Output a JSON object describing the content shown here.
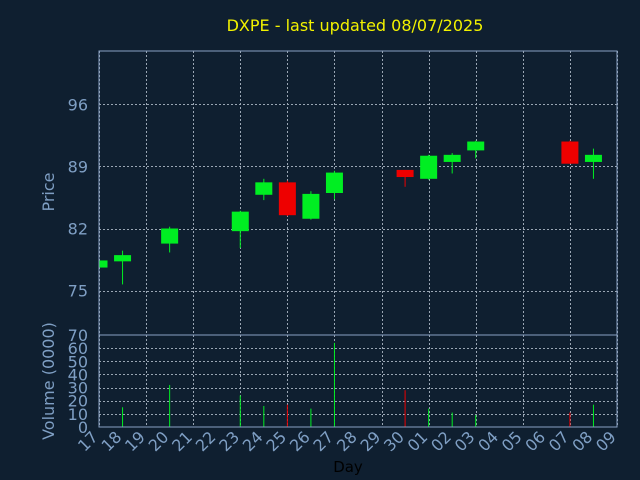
{
  "chart_data": {
    "type": "candlestick",
    "title": "DXPE - last updated 08/07/2025",
    "xlabel": "Day",
    "ylabel": "Price",
    "volume_label": "Volume (0000)",
    "price_ylim": [
      70,
      102
    ],
    "price_ticks": [
      75,
      82,
      89,
      96
    ],
    "volume_ylim": [
      0,
      70
    ],
    "volume_ticks": [
      0,
      10,
      20,
      30,
      40,
      50,
      60,
      70
    ],
    "grid": true,
    "categories": [
      "17",
      "18",
      "19",
      "20",
      "21",
      "22",
      "23",
      "24",
      "25",
      "26",
      "27",
      "28",
      "29",
      "30",
      "01",
      "02",
      "03",
      "04",
      "05",
      "06",
      "07",
      "08",
      "09"
    ],
    "candles": [
      {
        "x": "17",
        "open": 77.6,
        "high": 78.5,
        "low": 77.3,
        "close": 78.4,
        "volume": 7
      },
      {
        "x": "18",
        "open": 78.3,
        "high": 79.5,
        "low": 75.7,
        "close": 79.0,
        "volume": 15
      },
      {
        "x": "20",
        "open": 80.3,
        "high": 82.2,
        "low": 79.3,
        "close": 82.0,
        "volume": 32
      },
      {
        "x": "23",
        "open": 81.7,
        "high": 84.0,
        "low": 79.8,
        "close": 83.9,
        "volume": 24
      },
      {
        "x": "24",
        "open": 85.8,
        "high": 87.6,
        "low": 85.2,
        "close": 87.2,
        "volume": 16
      },
      {
        "x": "25",
        "open": 87.2,
        "high": 87.4,
        "low": 83.4,
        "close": 83.5,
        "volume": 17
      },
      {
        "x": "26",
        "open": 83.1,
        "high": 86.2,
        "low": 83.0,
        "close": 85.9,
        "volume": 14
      },
      {
        "x": "27",
        "open": 86.0,
        "high": 88.5,
        "low": 85.3,
        "close": 88.3,
        "volume": 64
      },
      {
        "x": "30",
        "open": 88.6,
        "high": 88.6,
        "low": 86.7,
        "close": 87.8,
        "volume": 28
      },
      {
        "x": "01",
        "open": 87.6,
        "high": 90.3,
        "low": 87.5,
        "close": 90.2,
        "volume": 14
      },
      {
        "x": "02",
        "open": 89.5,
        "high": 90.5,
        "low": 88.2,
        "close": 90.3,
        "volume": 11
      },
      {
        "x": "03",
        "open": 90.8,
        "high": 91.9,
        "low": 89.9,
        "close": 91.8,
        "volume": 9
      },
      {
        "x": "07",
        "open": 91.8,
        "high": 91.9,
        "low": 89.3,
        "close": 89.3,
        "volume": 11
      },
      {
        "x": "08",
        "open": 89.5,
        "high": 91.0,
        "low": 87.6,
        "close": 90.3,
        "volume": 17
      }
    ],
    "colors": {
      "background": "#0f1f30",
      "up": "#00ee22",
      "down": "#ee0000",
      "title": "#f2f200",
      "axis_text": "#7f9fc4",
      "frame": "#8aa2c4",
      "grid": "#9aa6b4",
      "xlabel": "#000000"
    }
  }
}
